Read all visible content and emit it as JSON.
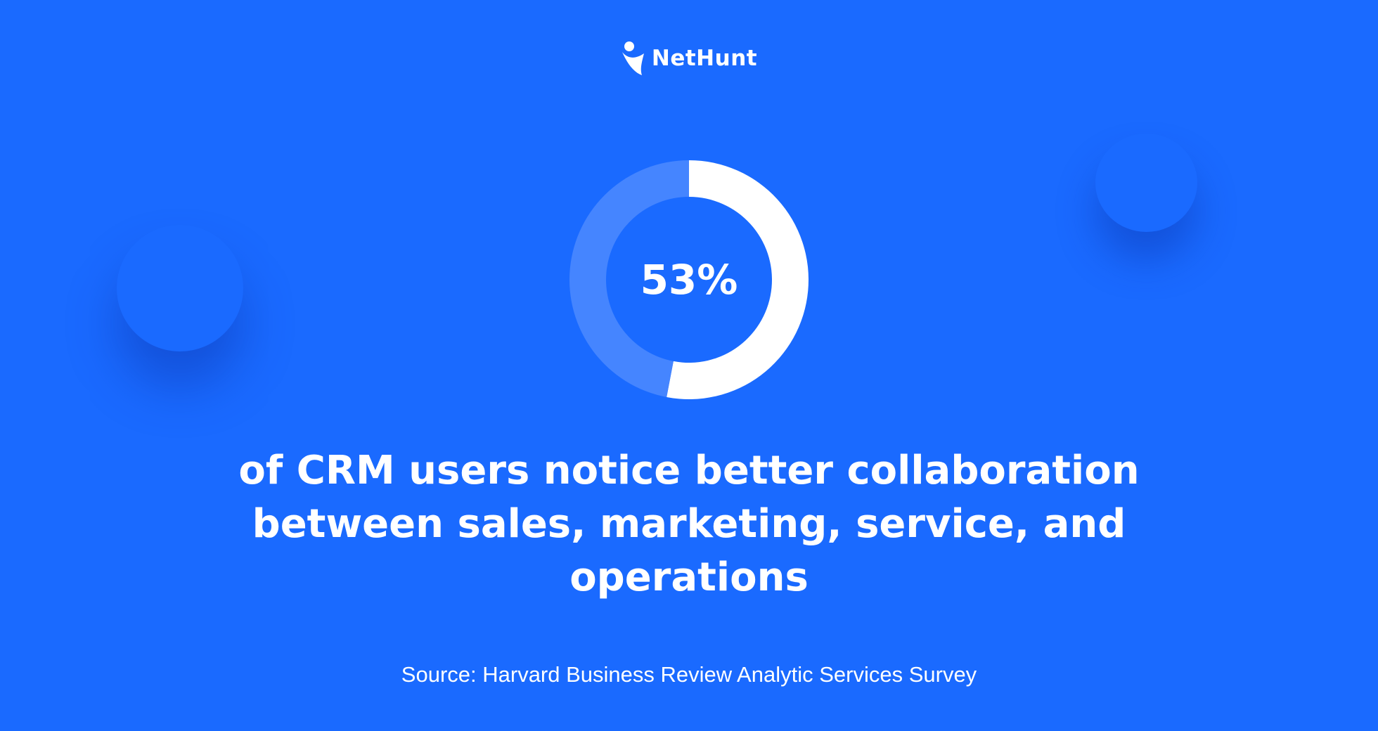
{
  "brand": {
    "logo_icon": "nethunt-person-icon",
    "name": "NetHunt"
  },
  "colors": {
    "background": "#1a6aff",
    "donut_filled": "#ffffff",
    "donut_remainder": "#4585ff",
    "text": "#ffffff"
  },
  "chart_data": {
    "type": "pie",
    "variant": "donut",
    "values": [
      53,
      47
    ],
    "center_label": "53%",
    "legend": "none",
    "grid": false
  },
  "headline": "of CRM users notice better collaboration between sales, marketing, service, and operations",
  "source": "Source: Harvard Business Review Analytic Services Survey"
}
